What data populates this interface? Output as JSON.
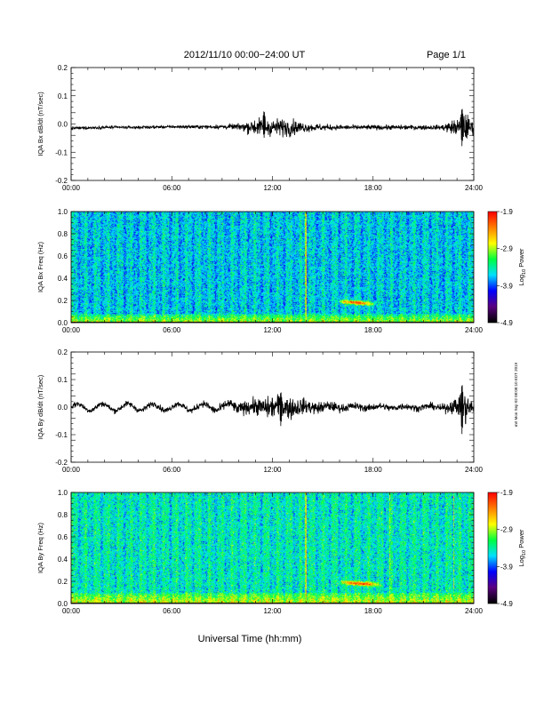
{
  "header": {
    "title": "2012/11/10  00:00−24:00 UT",
    "page": "Page 1/1"
  },
  "xaxis": {
    "label": "Universal Time (hh:mm)",
    "ticks": [
      "00:00",
      "06:00",
      "12:00",
      "18:00",
      "24:00"
    ],
    "tick_values": [
      0,
      6,
      12,
      18,
      24
    ],
    "range": [
      0,
      24
    ]
  },
  "colorbar": {
    "label": "Log10 Power",
    "label_base": "Log",
    "label_sub": "10",
    "label_rest": " Power",
    "ticks": [
      "-1.9",
      "-2.9",
      "-3.9",
      "-4.9"
    ],
    "tick_values": [
      -1.9,
      -2.9,
      -3.9,
      -4.9
    ],
    "range": [
      -4.9,
      -1.9
    ]
  },
  "side_note": "mrt Mon Sep 02 08:08:10 EDT 2019",
  "colors": {
    "trace": "#000000",
    "colormap": [
      "#000000",
      "#5a0080",
      "#0000ff",
      "#00e0ff",
      "#00ff40",
      "#ffff00",
      "#ff8000",
      "#ff0000"
    ]
  },
  "chart_data": [
    {
      "type": "line",
      "title": "",
      "ylabel": "IQA Bx dB/dt (nT/sec)",
      "ylim": [
        -0.2,
        0.2
      ],
      "yticks": [
        "0.2",
        "0.1",
        "0.0",
        "-0.1",
        "-0.2"
      ],
      "ytick_values": [
        0.2,
        0.1,
        0.0,
        -0.1,
        -0.2
      ],
      "xlim": [
        0,
        24
      ],
      "x": [
        0,
        2,
        4,
        6,
        8,
        10,
        11,
        12,
        13,
        14,
        16,
        18,
        20,
        22,
        23,
        23.5,
        24
      ],
      "baseline": [
        -0.015,
        -0.012,
        -0.012,
        -0.01,
        -0.01,
        -0.01,
        -0.01,
        -0.012,
        -0.012,
        -0.012,
        -0.012,
        -0.012,
        -0.012,
        -0.012,
        -0.012,
        -0.012,
        -0.012
      ],
      "envelope": [
        0.005,
        0.005,
        0.005,
        0.005,
        0.006,
        0.01,
        0.03,
        0.03,
        0.03,
        0.015,
        0.008,
        0.008,
        0.008,
        0.008,
        0.03,
        0.05,
        0.02
      ],
      "peaks": [
        {
          "x": 23.3,
          "min": -0.08,
          "max": 0.06
        },
        {
          "x": 11.5,
          "min": -0.05,
          "max": 0.05
        }
      ]
    },
    {
      "type": "heatmap",
      "title": "",
      "ylabel": "IQA Bx Freq (Hz)",
      "ylim": [
        0.0,
        1.0
      ],
      "yticks": [
        "1.0",
        "0.8",
        "0.6",
        "0.4",
        "0.2",
        "0.0"
      ],
      "ytick_values": [
        1.0,
        0.8,
        0.6,
        0.4,
        0.2,
        0.0
      ],
      "xlim": [
        0,
        24
      ],
      "colorbar": "Log10 Power",
      "clim": [
        -4.9,
        -1.9
      ],
      "background_level": -3.6,
      "low_freq_level": -2.9,
      "low_freq_cutoff_hz": 0.08,
      "features": [
        {
          "kind": "vertical_line",
          "x": 14.0,
          "level": -2.5
        },
        {
          "kind": "patch",
          "x_start": 15.8,
          "x_end": 18.2,
          "freq": 0.18,
          "level": -2.1
        }
      ]
    },
    {
      "type": "line",
      "title": "",
      "ylabel": "IQA By dB/dt (nT/sec)",
      "ylim": [
        -0.2,
        0.2
      ],
      "yticks": [
        "0.2",
        "0.1",
        "0.0",
        "-0.1",
        "-0.2"
      ],
      "ytick_values": [
        0.2,
        0.1,
        0.0,
        -0.1,
        -0.2
      ],
      "xlim": [
        0,
        24
      ],
      "x": [
        0,
        2,
        4,
        6,
        8,
        10,
        11,
        12,
        13,
        14,
        16,
        18,
        20,
        22,
        23,
        23.5,
        24
      ],
      "baseline": [
        0.0,
        0.0,
        0.0,
        0.0,
        0.0,
        0.0,
        0.0,
        0.0,
        0.0,
        0.0,
        0.0,
        0.0,
        0.0,
        0.0,
        0.0,
        0.0,
        0.0
      ],
      "envelope": [
        0.01,
        0.01,
        0.01,
        0.01,
        0.012,
        0.02,
        0.03,
        0.04,
        0.04,
        0.025,
        0.015,
        0.012,
        0.012,
        0.012,
        0.03,
        0.06,
        0.02
      ],
      "wave_amplitude": 0.012,
      "wave_period_hours": 1.5,
      "peaks": [
        {
          "x": 23.3,
          "min": -0.1,
          "max": 0.09
        },
        {
          "x": 12.5,
          "min": -0.07,
          "max": 0.06
        }
      ]
    },
    {
      "type": "heatmap",
      "title": "",
      "ylabel": "IQA By Freq (Hz)",
      "ylim": [
        0.0,
        1.0
      ],
      "yticks": [
        "1.0",
        "0.8",
        "0.6",
        "0.4",
        "0.2",
        "0.0"
      ],
      "ytick_values": [
        1.0,
        0.8,
        0.6,
        0.4,
        0.2,
        0.0
      ],
      "xlim": [
        0,
        24
      ],
      "colorbar": "Log10 Power",
      "clim": [
        -4.9,
        -1.9
      ],
      "background_level": -3.45,
      "low_freq_level": -2.8,
      "low_freq_cutoff_hz": 0.1,
      "features": [
        {
          "kind": "vertical_line",
          "x": 14.0,
          "level": -2.5
        },
        {
          "kind": "vertical_line",
          "x": 19.0,
          "level": -2.9
        },
        {
          "kind": "vertical_line",
          "x": 22.8,
          "level": -2.9
        },
        {
          "kind": "patch",
          "x_start": 15.8,
          "x_end": 18.6,
          "freq": 0.18,
          "level": -2.1
        }
      ]
    }
  ]
}
